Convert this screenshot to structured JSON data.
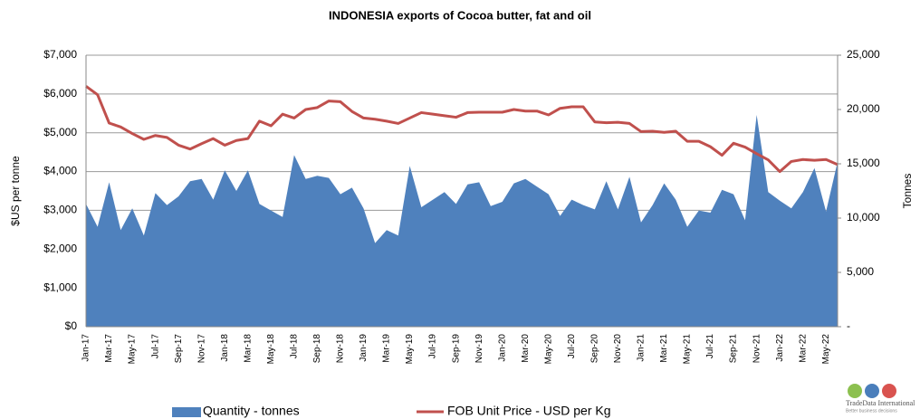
{
  "chart_data": {
    "type": "combo",
    "title": "INDONESIA exports of Cocoa butter, fat and oil",
    "y_label": "$US per tonne",
    "y2_label": "Tonnes",
    "categories": [
      "Jan-17",
      null,
      "Mar-17",
      null,
      "May-17",
      null,
      "Jul-17",
      null,
      "Sep-17",
      null,
      "Nov-17",
      null,
      "Jan-18",
      null,
      "Mar-18",
      null,
      "May-18",
      null,
      "Jul-18",
      null,
      "Sep-18",
      null,
      "Nov-18",
      null,
      "Jan-19",
      null,
      "Mar-19",
      null,
      "May-19",
      null,
      "Jul-19",
      null,
      "Sep-19",
      null,
      "Nov-19",
      null,
      "Jan-20",
      null,
      "Mar-20",
      null,
      "May-20",
      null,
      "Jul-20",
      null,
      "Sep-20",
      null,
      "Nov-20",
      null,
      "Jan-21",
      null,
      "Mar-21",
      null,
      "May-21",
      null,
      "Jul-21",
      null,
      "Sep-21",
      null,
      "Nov-21",
      null,
      "Jan-22",
      null,
      "Mar-22",
      null,
      "May-22",
      null
    ],
    "series": [
      {
        "name": "Quantity - tonnes",
        "type": "area",
        "axis": "y2",
        "color": "#4f81bd",
        "values": [
          11300,
          9200,
          13300,
          8900,
          10900,
          8400,
          12300,
          11200,
          12000,
          13400,
          13600,
          11700,
          14400,
          12500,
          14400,
          11300,
          10700,
          10100,
          15800,
          13600,
          13900,
          13700,
          12200,
          12800,
          10900,
          7700,
          8900,
          8400,
          14800,
          11000,
          11700,
          12400,
          11300,
          13100,
          13300,
          11100,
          11500,
          13200,
          13600,
          12900,
          12200,
          10200,
          11700,
          11200,
          10800,
          13400,
          10800,
          13800,
          9600,
          11200,
          13200,
          11700,
          9200,
          10700,
          10500,
          12600,
          12200,
          9800,
          19500,
          12400,
          11600,
          10900,
          12400,
          14600,
          10600,
          15200
        ]
      },
      {
        "name": "FOB Unit Price - USD per Kg",
        "type": "line",
        "color": "#c0504d",
        "values": [
          6200,
          5980,
          5250,
          5150,
          4980,
          4830,
          4930,
          4880,
          4680,
          4580,
          4720,
          4850,
          4680,
          4800,
          4850,
          5300,
          5180,
          5480,
          5380,
          5600,
          5650,
          5820,
          5800,
          5550,
          5380,
          5350,
          5300,
          5240,
          5380,
          5520,
          5480,
          5440,
          5400,
          5520,
          5530,
          5530,
          5530,
          5600,
          5560,
          5560,
          5460,
          5630,
          5670,
          5670,
          5280,
          5260,
          5270,
          5240,
          5030,
          5040,
          5010,
          5040,
          4780,
          4780,
          4640,
          4420,
          4730,
          4630,
          4460,
          4300,
          4000,
          4260,
          4310,
          4290,
          4310,
          4180
        ]
      }
    ],
    "ylim": [
      0,
      7000
    ],
    "yticks": [
      {
        "value": 0,
        "label": "$0"
      },
      {
        "value": 1000,
        "label": "$1,000"
      },
      {
        "value": 2000,
        "label": "$2,000"
      },
      {
        "value": 3000,
        "label": "$3,000"
      },
      {
        "value": 4000,
        "label": "$4,000"
      },
      {
        "value": 5000,
        "label": "$5,000"
      },
      {
        "value": 6000,
        "label": "$6,000"
      },
      {
        "value": 7000,
        "label": "$7,000"
      }
    ],
    "y2lim": [
      0,
      25000
    ],
    "y2ticks": [
      {
        "value": 0,
        "label": "-"
      },
      {
        "value": 5000,
        "label": "5,000"
      },
      {
        "value": 10000,
        "label": "10,000"
      },
      {
        "value": 15000,
        "label": "15,000"
      },
      {
        "value": 20000,
        "label": "20,000"
      },
      {
        "value": 25000,
        "label": "25,000"
      }
    ],
    "grid": true,
    "legend": "bottom"
  },
  "logo": {
    "name": "TradeData International",
    "tagline": "Better business decisions"
  }
}
